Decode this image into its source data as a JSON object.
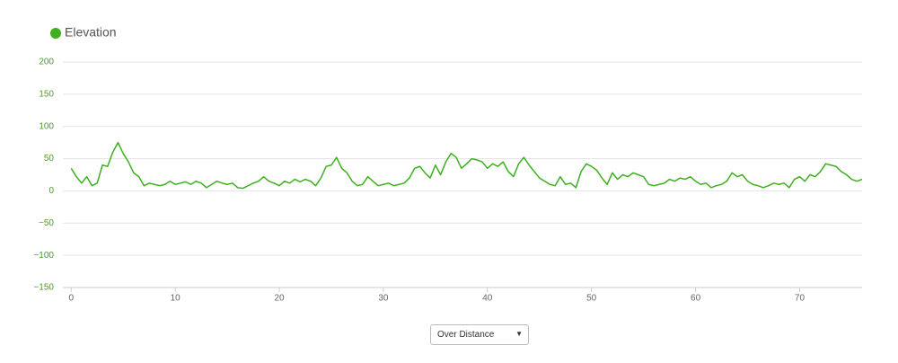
{
  "chart_data": {
    "type": "line",
    "x": [
      0,
      0.5,
      1,
      1.5,
      2,
      2.5,
      3,
      3.5,
      4,
      4.5,
      5,
      5.5,
      6,
      6.5,
      7,
      7.5,
      8,
      8.5,
      9,
      9.5,
      10,
      10.5,
      11,
      11.5,
      12,
      12.5,
      13,
      13.5,
      14,
      14.5,
      15,
      15.5,
      16,
      16.5,
      17,
      17.5,
      18,
      18.5,
      19,
      19.5,
      20,
      20.5,
      21,
      21.5,
      22,
      22.5,
      23,
      23.5,
      24,
      24.5,
      25,
      25.5,
      26,
      26.5,
      27,
      27.5,
      28,
      28.5,
      29,
      29.5,
      30,
      30.5,
      31,
      31.5,
      32,
      32.5,
      33,
      33.5,
      34,
      34.5,
      35,
      35.5,
      36,
      36.5,
      37,
      37.5,
      38,
      38.5,
      39,
      39.5,
      40,
      40.5,
      41,
      41.5,
      42,
      42.5,
      43,
      43.5,
      44,
      44.5,
      45,
      45.5,
      46,
      46.5,
      47,
      47.5,
      48,
      48.5,
      49,
      49.5,
      50,
      50.5,
      51,
      51.5,
      52,
      52.5,
      53,
      53.5,
      54,
      54.5,
      55,
      55.5,
      56,
      56.5,
      57,
      57.5,
      58,
      58.5,
      59,
      59.5,
      60,
      60.5,
      61,
      61.5,
      62,
      62.5,
      63,
      63.5,
      64,
      64.5,
      65,
      65.5,
      66,
      66.5,
      67,
      67.5,
      68,
      68.5,
      69,
      69.5,
      70,
      70.5,
      71,
      71.5,
      72,
      72.5,
      73,
      73.5,
      74,
      74.5,
      75,
      75.5,
      76
    ],
    "series": [
      {
        "name": "Elevation",
        "color": "#3fae1f",
        "values": [
          35,
          22,
          12,
          22,
          8,
          12,
          40,
          38,
          60,
          75,
          58,
          45,
          28,
          22,
          8,
          12,
          10,
          8,
          10,
          15,
          10,
          12,
          14,
          10,
          15,
          12,
          5,
          10,
          15,
          12,
          10,
          12,
          5,
          4,
          8,
          12,
          15,
          22,
          15,
          12,
          8,
          15,
          12,
          18,
          14,
          18,
          15,
          8,
          20,
          38,
          40,
          52,
          35,
          28,
          15,
          8,
          10,
          22,
          15,
          8,
          10,
          12,
          8,
          10,
          12,
          20,
          35,
          38,
          28,
          20,
          40,
          25,
          45,
          58,
          52,
          35,
          42,
          50,
          48,
          45,
          35,
          42,
          38,
          45,
          30,
          22,
          42,
          52,
          40,
          30,
          20,
          15,
          10,
          8,
          22,
          10,
          12,
          5,
          30,
          42,
          38,
          32,
          20,
          10,
          28,
          18,
          25,
          22,
          28,
          25,
          22,
          10,
          8,
          10,
          12,
          18,
          15,
          20,
          18,
          22,
          15,
          10,
          12,
          5,
          8,
          10,
          15,
          28,
          22,
          25,
          15,
          10,
          8,
          5,
          8,
          12,
          10,
          12,
          5,
          18,
          22,
          15,
          25,
          22,
          30,
          42,
          40,
          38,
          30,
          25,
          18,
          15,
          18
        ]
      }
    ],
    "xlim": [
      -0.8,
      76
    ],
    "xticks": [
      0,
      10,
      20,
      30,
      40,
      50,
      60,
      70
    ],
    "ylim": [
      -150,
      200
    ],
    "yticks": [
      {
        "value": -150,
        "label": "−150"
      },
      {
        "value": -100,
        "label": "−100"
      },
      {
        "value": -50,
        "label": "−50"
      },
      0,
      50,
      100,
      150,
      200
    ],
    "grid": true
  },
  "dropdown": {
    "selected": "Over Distance"
  }
}
